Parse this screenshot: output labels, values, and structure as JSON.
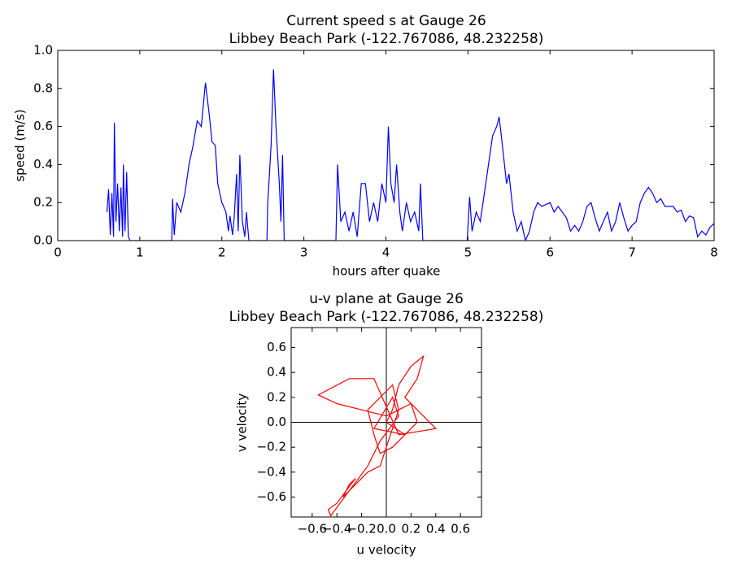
{
  "chart_data": [
    {
      "type": "line",
      "title": "Current speed s at Gauge 26",
      "subtitle": "Libbey Beach Park  (-122.767086, 48.232258)",
      "xlabel": "hours after quake",
      "ylabel": "speed (m/s)",
      "color": "#0000ff",
      "x": [
        0.6,
        0.62,
        0.64,
        0.66,
        0.68,
        0.69,
        0.71,
        0.73,
        0.75,
        0.77,
        0.79,
        0.8,
        0.82,
        0.84,
        0.86,
        0.88,
        1.39,
        1.4,
        1.42,
        1.45,
        1.5,
        1.55,
        1.6,
        1.65,
        1.7,
        1.75,
        1.8,
        1.85,
        1.88,
        1.92,
        1.95,
        2.0,
        2.05,
        2.08,
        2.1,
        2.13,
        2.15,
        2.18,
        2.2,
        2.22,
        2.25,
        2.28,
        2.3,
        2.33,
        2.55,
        2.56,
        2.6,
        2.63,
        2.66,
        2.7,
        2.72,
        2.74,
        2.76,
        3.39,
        3.41,
        3.45,
        3.5,
        3.55,
        3.6,
        3.65,
        3.7,
        3.75,
        3.8,
        3.85,
        3.9,
        3.95,
        4.0,
        4.03,
        4.06,
        4.1,
        4.13,
        4.17,
        4.2,
        4.25,
        4.3,
        4.35,
        4.4,
        4.42,
        4.45,
        4.99,
        5.02,
        5.05,
        5.1,
        5.15,
        5.2,
        5.25,
        5.3,
        5.35,
        5.38,
        5.42,
        5.47,
        5.5,
        5.55,
        5.6,
        5.65,
        5.7,
        5.75,
        5.8,
        5.85,
        5.9,
        6.0,
        6.05,
        6.1,
        6.2,
        6.25,
        6.3,
        6.35,
        6.4,
        6.45,
        6.5,
        6.55,
        6.6,
        6.65,
        6.7,
        6.75,
        6.8,
        6.85,
        6.9,
        6.95,
        7.0,
        7.05,
        7.1,
        7.15,
        7.2,
        7.25,
        7.3,
        7.35,
        7.4,
        7.5,
        7.55,
        7.6,
        7.65,
        7.7,
        7.75,
        7.8,
        7.85,
        7.9,
        7.95,
        8.0
      ],
      "y": [
        0.15,
        0.27,
        0.03,
        0.25,
        0.02,
        0.62,
        0.1,
        0.3,
        0.05,
        0.28,
        0.02,
        0.4,
        0.05,
        0.36,
        0.02,
        0,
        0,
        0.22,
        0.03,
        0.2,
        0.15,
        0.25,
        0.4,
        0.5,
        0.63,
        0.6,
        0.83,
        0.65,
        0.52,
        0.5,
        0.3,
        0.2,
        0.15,
        0.05,
        0.13,
        0.03,
        0.12,
        0.35,
        0.05,
        0.45,
        0.1,
        0.02,
        0.15,
        0,
        0,
        0.2,
        0.5,
        0.9,
        0.6,
        0.3,
        0.1,
        0.45,
        0,
        0,
        0.4,
        0.1,
        0.15,
        0.05,
        0.15,
        0.02,
        0.3,
        0.3,
        0.1,
        0.2,
        0.1,
        0.3,
        0.2,
        0.6,
        0.3,
        0.2,
        0.4,
        0.15,
        0.05,
        0.2,
        0.1,
        0.15,
        0.05,
        0.3,
        0,
        0,
        0.23,
        0.05,
        0.15,
        0.1,
        0.25,
        0.4,
        0.55,
        0.6,
        0.65,
        0.5,
        0.3,
        0.35,
        0.15,
        0.05,
        0.1,
        0,
        0.05,
        0.15,
        0.2,
        0.18,
        0.2,
        0.15,
        0.18,
        0.12,
        0.05,
        0.08,
        0.05,
        0.1,
        0.18,
        0.2,
        0.12,
        0.05,
        0.1,
        0.15,
        0.05,
        0.1,
        0.2,
        0.12,
        0.05,
        0.08,
        0.1,
        0.2,
        0.25,
        0.28,
        0.25,
        0.2,
        0.22,
        0.18,
        0.18,
        0.15,
        0.16,
        0.1,
        0.13,
        0.12,
        0.02,
        0.05,
        0.03,
        0.07,
        0.09
      ],
      "xlim": [
        0,
        8
      ],
      "xticks": [
        0,
        1,
        2,
        3,
        4,
        5,
        6,
        7,
        8
      ],
      "ylim": [
        0,
        1
      ],
      "yticks": [
        {
          "value": 0,
          "label": "0.0"
        },
        0.2,
        0.4,
        0.6,
        0.8,
        {
          "value": 1,
          "label": "1.0"
        }
      ]
    },
    {
      "type": "line",
      "title": "u-v plane at Gauge 26",
      "subtitle": "Libbey Beach Park  (-122.767086, 48.232258)",
      "xlabel": "u velocity",
      "ylabel": "v velocity",
      "color": "#ff0000",
      "x": [
        0,
        0.05,
        0.1,
        0.2,
        0.3,
        0.25,
        0.15,
        0.4,
        0.1,
        -0.1,
        -0.3,
        -0.55,
        -0.4,
        -0.2,
        0,
        0.2,
        0.25,
        0.05,
        -0.05,
        -0.1,
        -0.15,
        0.05,
        0.1,
        -0.05,
        -0.15,
        -0.25,
        -0.35,
        -0.3,
        -0.25,
        -0.4,
        -0.47,
        -0.45,
        -0.3,
        -0.15,
        -0.05,
        0.1,
        0.05,
        -0.1,
        0.15,
        0
      ],
      "y": [
        0,
        0.1,
        0.3,
        0.45,
        0.53,
        0.35,
        0.2,
        -0.05,
        -0.1,
        0.35,
        0.35,
        0.22,
        0.15,
        0.1,
        0.05,
        0.15,
        0,
        -0.2,
        -0.25,
        -0.1,
        0.1,
        0.3,
        0.1,
        -0.35,
        -0.4,
        -0.5,
        -0.6,
        -0.5,
        -0.45,
        -0.65,
        -0.7,
        -0.75,
        -0.55,
        -0.35,
        -0.15,
        0.05,
        0.2,
        -0.05,
        -0.1,
        0
      ],
      "xlim": [
        -0.77,
        0.77
      ],
      "xticks": [
        {
          "value": -0.6,
          "label": "−0.6"
        },
        {
          "value": -0.4,
          "label": "−0.4"
        },
        {
          "value": -0.2,
          "label": "−0.2"
        },
        {
          "value": 0,
          "label": "0.0"
        },
        0.2,
        0.4,
        0.6
      ],
      "ylim": [
        -0.76,
        0.76
      ],
      "yticks": [
        {
          "value": -0.6,
          "label": "−0.6"
        },
        {
          "value": -0.4,
          "label": "−0.4"
        },
        {
          "value": -0.2,
          "label": "−0.2"
        },
        {
          "value": 0,
          "label": "0.0"
        },
        0.2,
        0.4,
        0.6
      ]
    }
  ]
}
